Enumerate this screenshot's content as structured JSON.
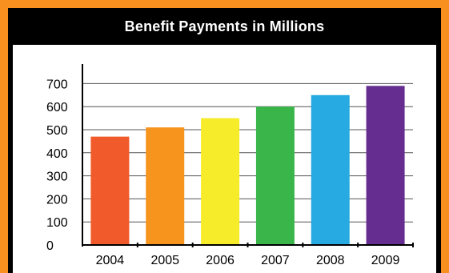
{
  "chart_data": {
    "type": "bar",
    "title": "Benefit Payments in Millions",
    "categories": [
      "2004",
      "2005",
      "2006",
      "2007",
      "2008",
      "2009"
    ],
    "values": [
      470,
      510,
      550,
      600,
      650,
      690
    ],
    "ylim": [
      0,
      800
    ],
    "yticks": [
      0,
      100,
      200,
      300,
      400,
      500,
      600,
      700
    ],
    "xlabel": "",
    "ylabel": "",
    "grid": true,
    "legend": "none",
    "colors": [
      "#f15a2b",
      "#f7941d",
      "#f7ec2a",
      "#3ab54a",
      "#27aae1",
      "#662d91"
    ]
  }
}
